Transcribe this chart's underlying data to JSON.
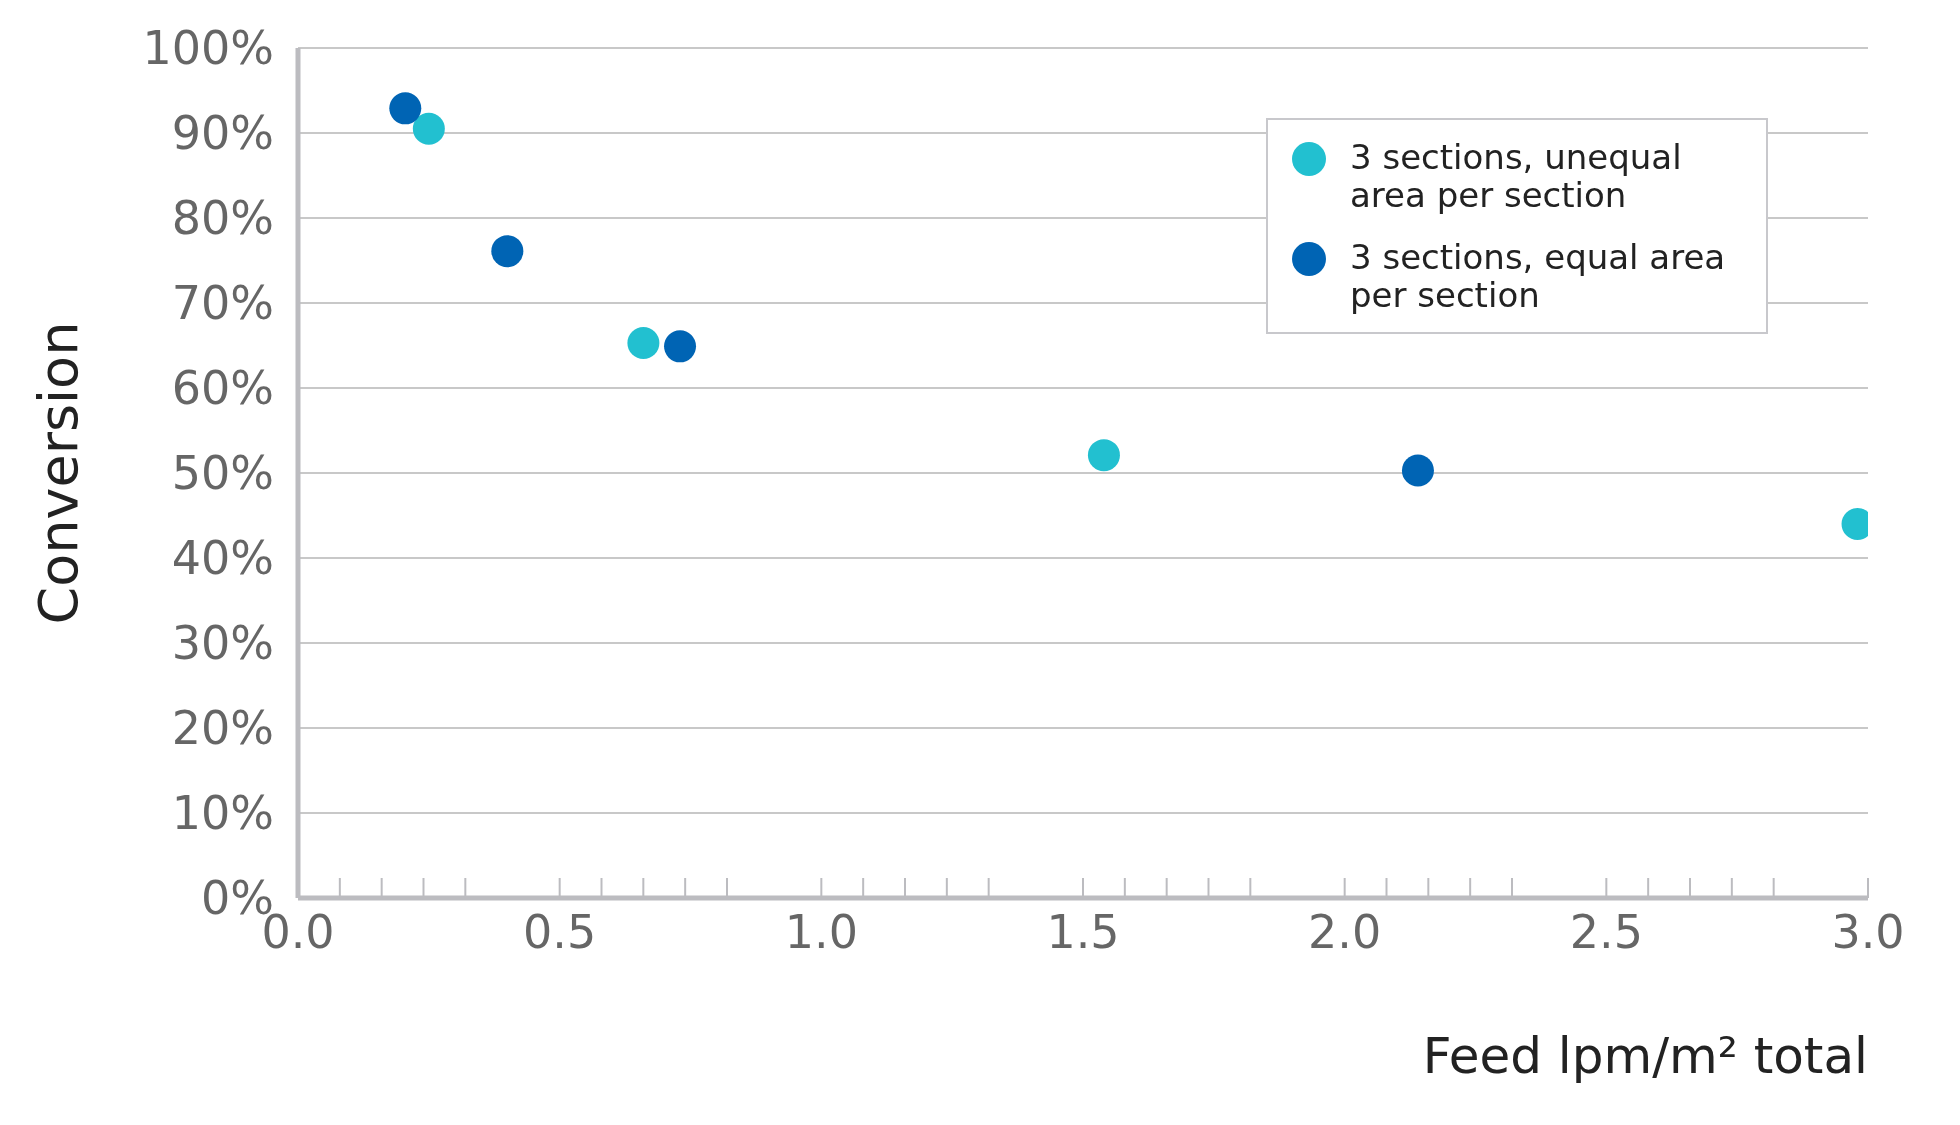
{
  "chart_data": {
    "type": "scatter",
    "xlabel": "Feed lpm/m² total",
    "ylabel": "Conversion",
    "series": [
      {
        "name": "3 sections, unequal area per section",
        "color": "#22c0d0",
        "x": [
          0.25,
          0.66,
          1.54,
          2.98
        ],
        "values": [
          90.5,
          65.3,
          52.1,
          44.0
        ]
      },
      {
        "name": "3 sections, equal area per section",
        "color": "#0064b4",
        "x": [
          0.205,
          0.4,
          0.73,
          2.14
        ],
        "values": [
          92.9,
          76.1,
          64.9,
          50.3
        ]
      }
    ],
    "xlim": [
      0,
      3
    ],
    "xticks": [
      {
        "value": 0,
        "label": "0.0"
      },
      {
        "value": 0.5,
        "label": "0.5"
      },
      {
        "value": 1,
        "label": "1.0"
      },
      {
        "value": 1.5,
        "label": "1.5"
      },
      {
        "value": 2,
        "label": "2.0"
      },
      {
        "value": 2.5,
        "label": "2.5"
      },
      {
        "value": 3,
        "label": "3.0"
      }
    ],
    "ylim": [
      0,
      100
    ],
    "yticks": [
      {
        "value": 0,
        "label": "0%"
      },
      {
        "value": 10,
        "label": "10%"
      },
      {
        "value": 20,
        "label": "20%"
      },
      {
        "value": 30,
        "label": "30%"
      },
      {
        "value": 40,
        "label": "40%"
      },
      {
        "value": 50,
        "label": "50%"
      },
      {
        "value": 60,
        "label": "60%"
      },
      {
        "value": 70,
        "label": "70%"
      },
      {
        "value": 80,
        "label": "80%"
      },
      {
        "value": 90,
        "label": "90%"
      },
      {
        "value": 100,
        "label": "100%"
      }
    ],
    "grid": "y",
    "legend": "top right",
    "marker": "circle"
  }
}
